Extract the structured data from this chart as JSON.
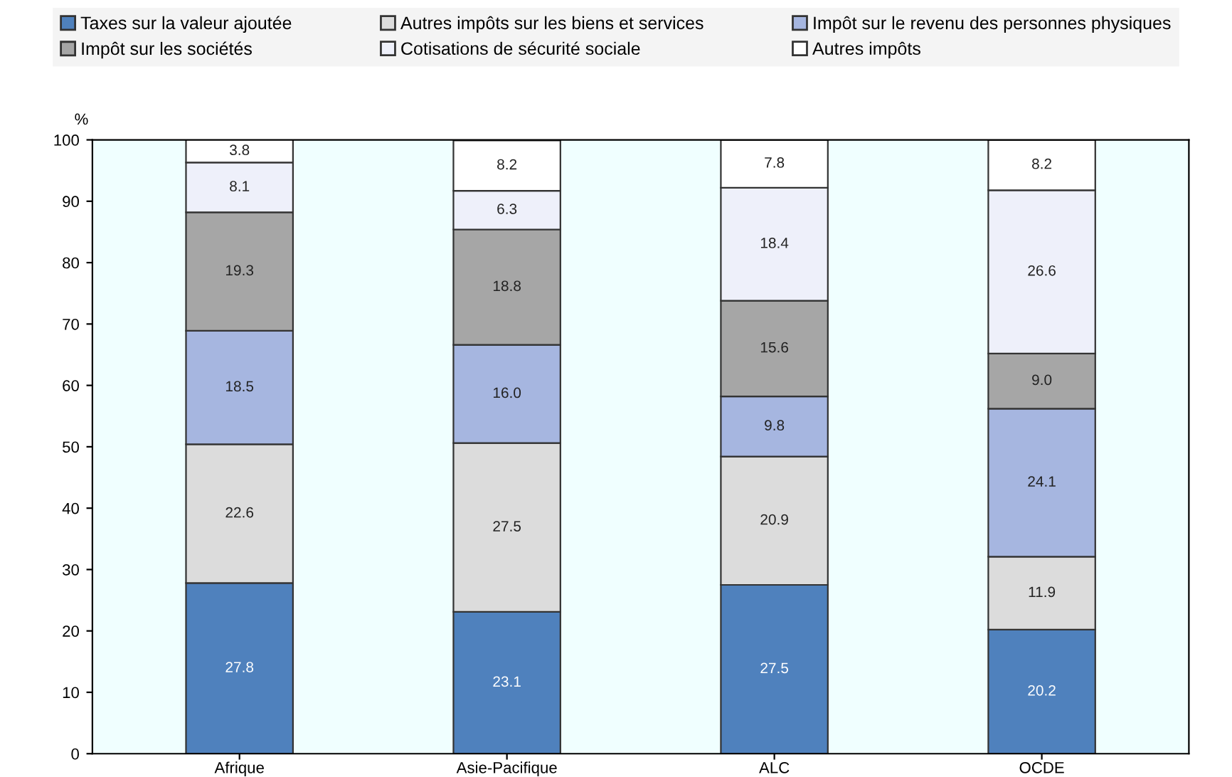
{
  "chart_data": {
    "type": "bar",
    "stacked": true,
    "ylabel": "%",
    "categories": [
      "Afrique",
      "Asie-Pacifique",
      "ALC",
      "OCDE"
    ],
    "series": [
      {
        "name": "Taxes sur la valeur ajoutée",
        "color": "#4f81bd",
        "values": [
          27.8,
          23.1,
          27.5,
          20.2
        ],
        "value_labels": [
          "27.8",
          "23.1",
          "27.5",
          "20.2"
        ]
      },
      {
        "name": "Autres impôts sur les biens et services",
        "color": "#dcdcdc",
        "values": [
          22.6,
          27.5,
          20.9,
          11.9
        ],
        "value_labels": [
          "22.6",
          "27.5",
          "20.9",
          "11.9"
        ]
      },
      {
        "name": "Impôt sur le revenu des personnes physiques",
        "color": "#a6b6e0",
        "values": [
          18.5,
          16.0,
          9.8,
          24.1
        ],
        "value_labels": [
          "18.5",
          "16.0",
          "9.8",
          "24.1"
        ]
      },
      {
        "name": "Impôt sur les sociétés",
        "color": "#a6a6a6",
        "values": [
          19.3,
          18.8,
          15.6,
          9.0
        ],
        "value_labels": [
          "19.3",
          "18.8",
          "15.6",
          "9.0"
        ]
      },
      {
        "name": "Cotisations de sécurité sociale",
        "color": "#eef0fa",
        "values": [
          8.1,
          6.3,
          18.4,
          26.6
        ],
        "value_labels": [
          "8.1",
          "6.3",
          "18.4",
          "26.6"
        ]
      },
      {
        "name": "Autres impôts",
        "color": "#ffffff",
        "values": [
          3.8,
          8.2,
          7.8,
          8.2
        ],
        "value_labels": [
          "3.8",
          "8.2",
          "7.8",
          "8.2"
        ]
      }
    ],
    "ylim": [
      0,
      100
    ],
    "yticks": [
      0,
      10,
      20,
      30,
      40,
      50,
      60,
      70,
      80,
      90,
      100
    ],
    "grid": false,
    "legend": "top"
  }
}
